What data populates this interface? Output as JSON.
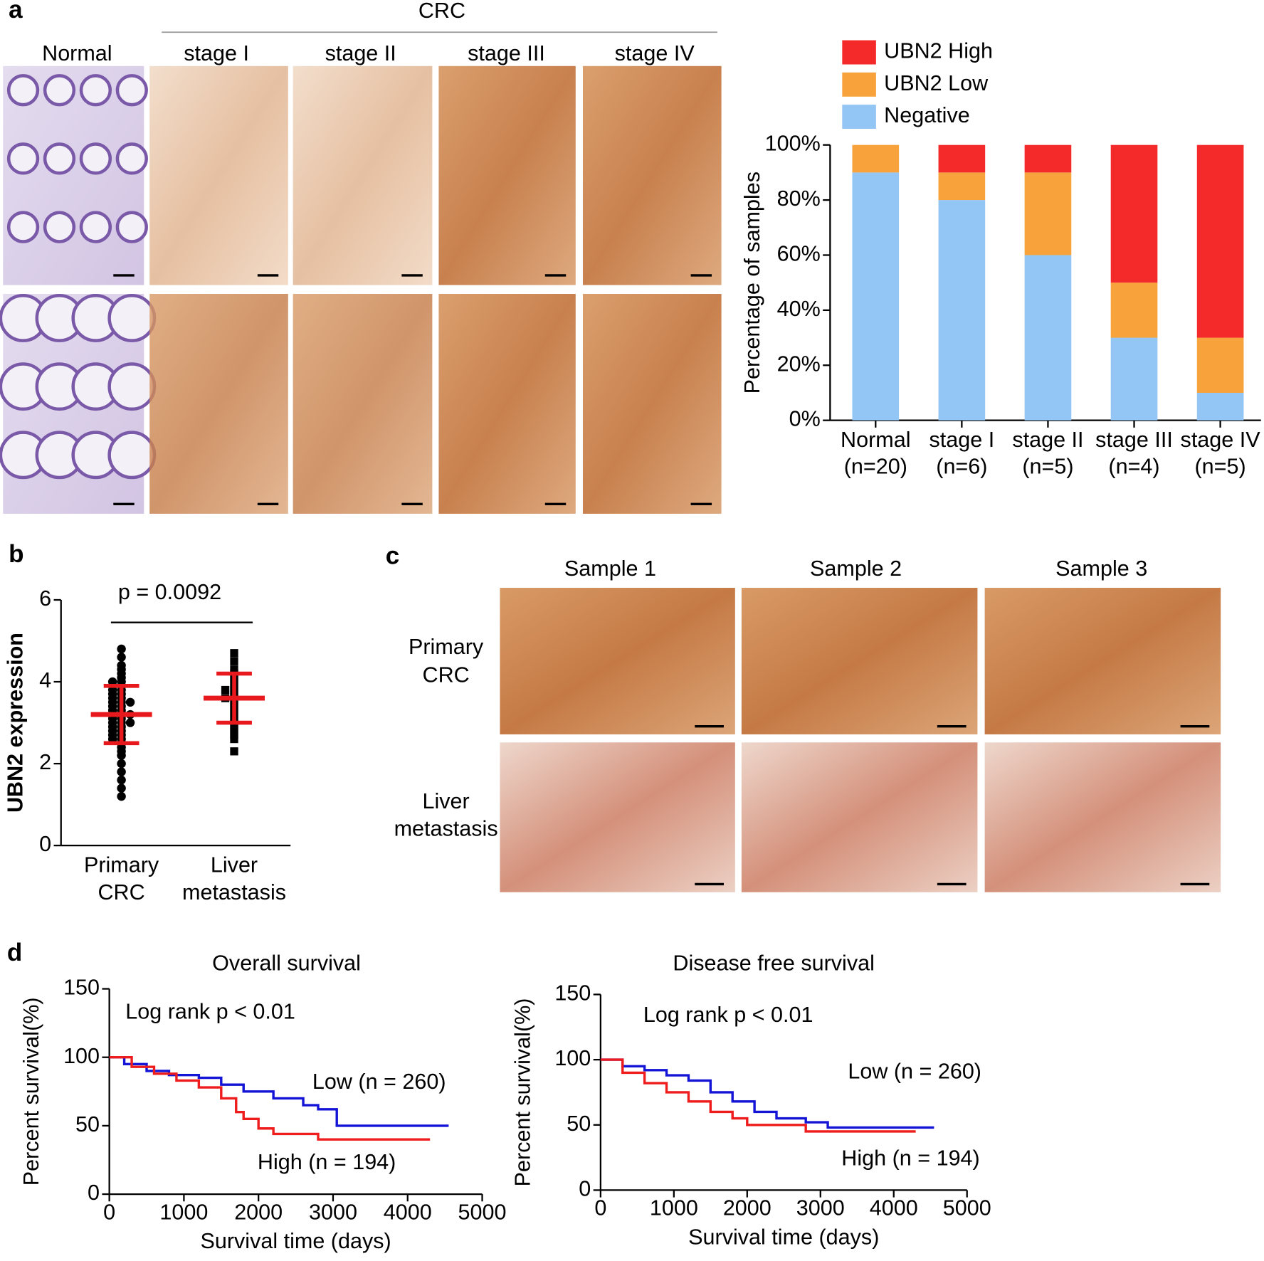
{
  "panel_labels": [
    "a",
    "b",
    "c",
    "d"
  ],
  "panel_a_images": {
    "group_label": "CRC",
    "columns": [
      "Normal",
      "stage I",
      "stage II",
      "stage III",
      "stage IV"
    ]
  },
  "panel_c_images": {
    "columns": [
      "Sample 1",
      "Sample 2",
      "Sample 3"
    ],
    "rows": [
      [
        "Primary",
        "CRC"
      ],
      [
        "Liver",
        "metastasis"
      ]
    ]
  },
  "chart_data": [
    {
      "type": "stacked_bar",
      "y_label": "Percentage of samples",
      "categories": [
        "Normal",
        "stage I",
        "stage II",
        "stage III",
        "stage IV"
      ],
      "sample_sizes": [
        "(n=20)",
        "(n=6)",
        "(n=5)",
        "(n=4)",
        "(n=5)"
      ],
      "ylim": [
        0,
        100
      ],
      "yticks": [
        {
          "value": 0,
          "label": "0%"
        },
        {
          "value": 20,
          "label": "20%"
        },
        {
          "value": 40,
          "label": "40%"
        },
        {
          "value": 60,
          "label": "60%"
        },
        {
          "value": 80,
          "label": "80%"
        },
        {
          "value": 100,
          "label": "100%"
        }
      ],
      "series": [
        {
          "name": "Negative",
          "color": "#93c5f5",
          "values": [
            90,
            80,
            60,
            30,
            10
          ]
        },
        {
          "name": "UBN2 Low",
          "color": "#f7a23a",
          "values": [
            10,
            10,
            30,
            20,
            20
          ]
        },
        {
          "name": "UBN2 High",
          "color": "#f42a2a",
          "values": [
            0,
            10,
            10,
            50,
            70
          ]
        }
      ]
    },
    {
      "type": "dot_plot",
      "y_label": "UBN2 expression",
      "annotation": "p = 0.0092",
      "categories": [
        [
          "Primary",
          "CRC"
        ],
        [
          "Liver",
          "metastasis"
        ]
      ],
      "ylim": [
        0,
        6
      ],
      "yticks": [
        0,
        2,
        4,
        6
      ],
      "groups": [
        {
          "marker": "circle",
          "color": "#000000",
          "mean": 3.2,
          "sd": 0.7,
          "values": [
            4.8,
            4.6,
            4.4,
            4.3,
            4.2,
            4.1,
            4.0,
            4.0,
            3.9,
            3.9,
            3.8,
            3.8,
            3.7,
            3.7,
            3.6,
            3.6,
            3.5,
            3.5,
            3.5,
            3.4,
            3.4,
            3.3,
            3.3,
            3.2,
            3.2,
            3.2,
            3.1,
            3.1,
            3.0,
            3.0,
            3.0,
            2.9,
            2.9,
            2.8,
            2.8,
            2.7,
            2.7,
            2.6,
            2.6,
            2.5,
            2.4,
            2.3,
            2.2,
            2.0,
            1.8,
            1.6,
            1.4,
            1.2
          ]
        },
        {
          "marker": "square",
          "color": "#000000",
          "mean": 3.6,
          "sd": 0.6,
          "values": [
            4.7,
            4.5,
            4.3,
            4.2,
            4.1,
            4.0,
            3.9,
            3.8,
            3.8,
            3.7,
            3.6,
            3.6,
            3.5,
            3.4,
            3.3,
            3.2,
            3.1,
            3.0,
            2.9,
            2.8,
            2.7,
            2.6,
            2.3
          ]
        }
      ],
      "summary_color": "#e8191c"
    },
    {
      "type": "line",
      "title": "Overall survival",
      "x_label": "Survival time (days)",
      "y_label": "Percent survival(%)",
      "annotation": "Log rank p < 0.01",
      "xlim": [
        0,
        5000
      ],
      "xticks": [
        0,
        1000,
        2000,
        3000,
        4000,
        5000
      ],
      "ylim": [
        0,
        150
      ],
      "yticks": [
        0,
        50,
        100,
        150
      ],
      "series": [
        {
          "name": "Low (n = 260)",
          "color": "#1414d6",
          "x": [
            0,
            200,
            500,
            800,
            1200,
            1500,
            1800,
            2200,
            2600,
            2800,
            3050,
            4550
          ],
          "values": [
            100,
            95,
            90,
            87,
            85,
            80,
            75,
            70,
            65,
            62,
            50,
            50
          ]
        },
        {
          "name": "High (n = 194)",
          "color": "#ee1c1c",
          "x": [
            0,
            300,
            600,
            900,
            1200,
            1500,
            1700,
            1800,
            2000,
            2200,
            2800,
            4300
          ],
          "values": [
            100,
            93,
            88,
            83,
            78,
            70,
            60,
            55,
            48,
            44,
            40,
            40
          ]
        }
      ]
    },
    {
      "type": "line",
      "title": "Disease free survival",
      "x_label": "Survival time (days)",
      "y_label": "Percent survival(%)",
      "annotation": "Log rank p < 0.01",
      "xlim": [
        0,
        5000
      ],
      "xticks": [
        0,
        1000,
        2000,
        3000,
        4000,
        5000
      ],
      "ylim": [
        0,
        150
      ],
      "yticks": [
        0,
        50,
        100,
        150
      ],
      "series": [
        {
          "name": "Low (n = 260)",
          "color": "#1414d6",
          "x": [
            0,
            300,
            600,
            900,
            1200,
            1500,
            1800,
            2100,
            2400,
            2800,
            3100,
            4550
          ],
          "values": [
            100,
            95,
            92,
            88,
            84,
            75,
            68,
            60,
            55,
            52,
            48,
            48
          ]
        },
        {
          "name": "High (n = 194)",
          "color": "#ee1c1c",
          "x": [
            0,
            300,
            600,
            900,
            1200,
            1500,
            1800,
            2000,
            2800,
            4300
          ],
          "values": [
            100,
            90,
            82,
            75,
            68,
            60,
            55,
            50,
            45,
            45
          ]
        }
      ]
    }
  ]
}
